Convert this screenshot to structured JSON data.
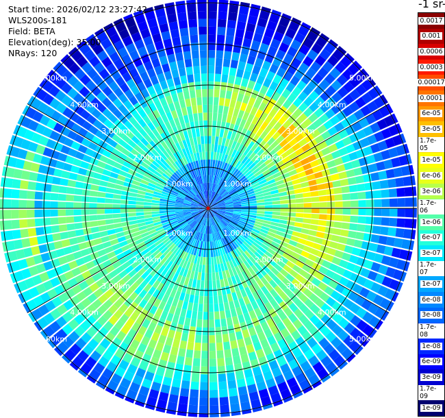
{
  "header": {
    "start_time": "Start time: 2026/02/12 23:27:42",
    "instrument": "WLS200s-181",
    "field": "Field: BETA",
    "elevation": "Elevation(deg): 35.00",
    "nrays": "NRays: 120"
  },
  "colorbar": {
    "title": "-1 sr-",
    "labels": [
      "0.0017",
      "0.001",
      "0.0006",
      "0.0003",
      "0.00017",
      "0.0001",
      "6e-05",
      "3e-05",
      "1.7e-05",
      "1e-05",
      "6e-06",
      "3e-06",
      "1.7e-06",
      "1e-06",
      "6e-07",
      "3e-07",
      "1.7e-07",
      "1e-07",
      "6e-08",
      "3e-08",
      "1.7e-08",
      "1e-08",
      "6e-09",
      "3e-09",
      "1.7e-09",
      "1e-09"
    ],
    "colors": [
      "#8b0000",
      "#b00000",
      "#d80000",
      "#ff1a00",
      "#ff4d00",
      "#ff7400",
      "#ff9900",
      "#ffbf00",
      "#ffe000",
      "#ffff00",
      "#e8ff1a",
      "#b7ff4b",
      "#86ff7b",
      "#55ffaa",
      "#22ffdb",
      "#00e8ff",
      "#00c8ff",
      "#00a8ff",
      "#0088ff",
      "#0068ff",
      "#0048ff",
      "#0028ff",
      "#0000ff",
      "#0000d0",
      "#00009e",
      "#000070"
    ]
  },
  "chart_data": {
    "type": "heatmap",
    "projection": "polar PPI",
    "field": "BETA",
    "elevation_deg": 35.0,
    "n_rays": 120,
    "range_rings_km": [
      1,
      2,
      3,
      4,
      5
    ],
    "ring_labels": [
      "1.00km",
      "2.00km",
      "3.00km",
      "4.00km",
      "5.00km"
    ],
    "spoke_step_deg": 30,
    "colorbar_ticks": [
      "0.0017",
      "0.001",
      "0.0006",
      "0.0003",
      "0.00017",
      "0.0001",
      "6e-05",
      "3e-05",
      "1.7e-05",
      "1e-05",
      "6e-06",
      "3e-06",
      "1.7e-06",
      "1e-06",
      "6e-07",
      "3e-07",
      "1.7e-07",
      "1e-07",
      "6e-08",
      "3e-08",
      "1.7e-08",
      "1e-08",
      "6e-09",
      "3e-09",
      "1.7e-09",
      "1e-09"
    ],
    "colormap": "jet"
  }
}
